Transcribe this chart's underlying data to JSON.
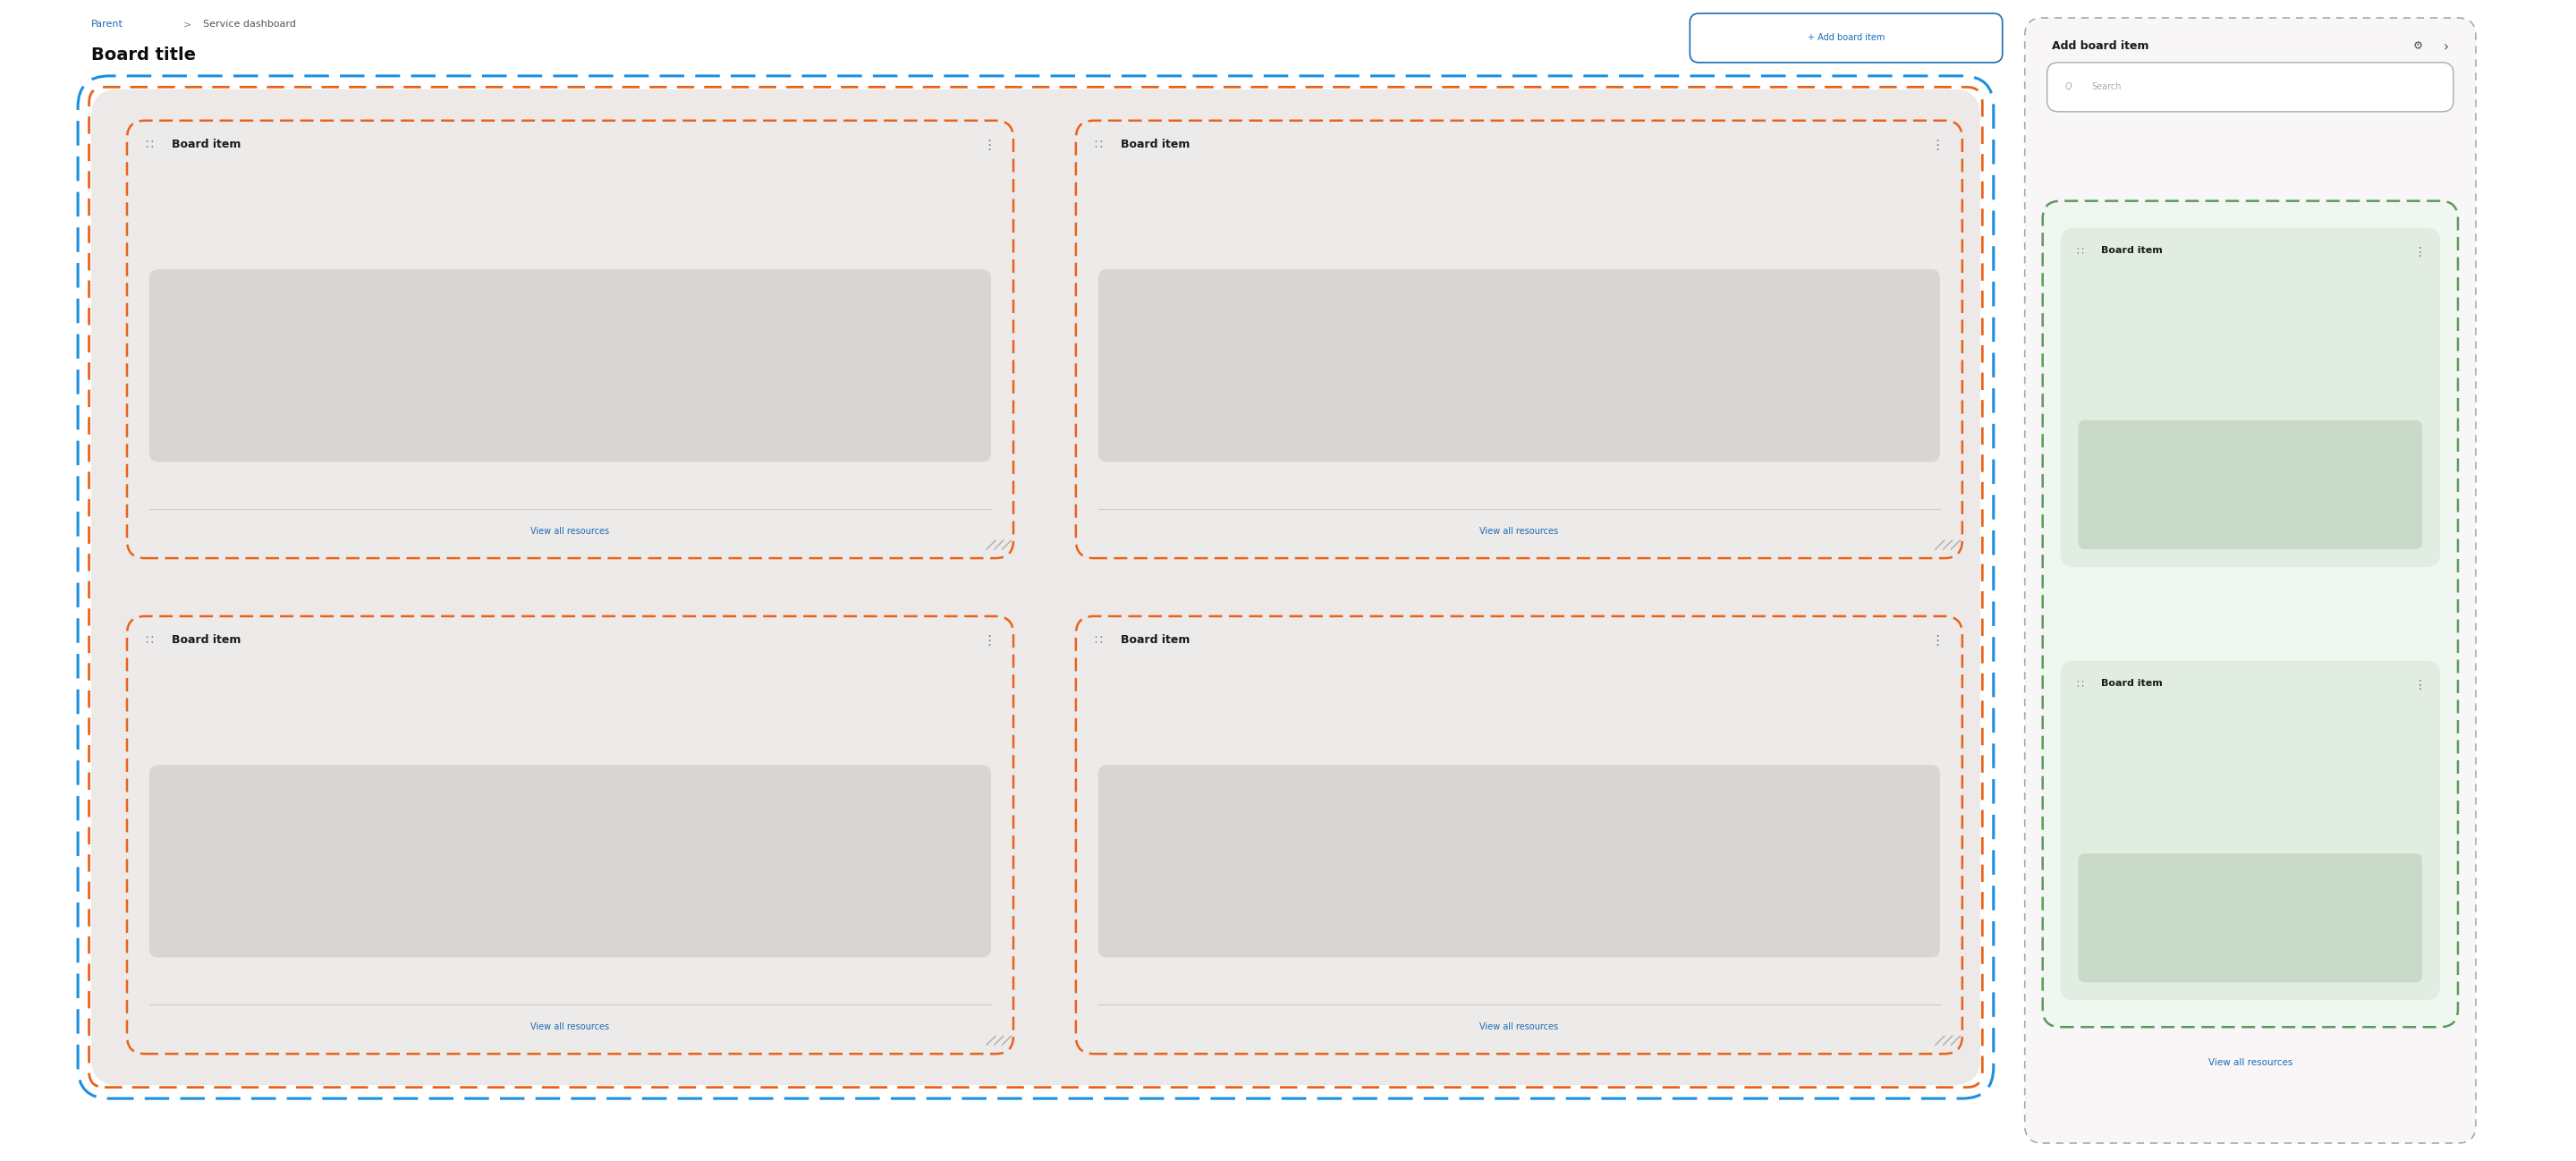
{
  "bg_color": "#ffffff",
  "breadcrumb_parent": "Parent",
  "breadcrumb_sep": ">",
  "breadcrumb_rest": "Service dashboard",
  "board_title": "Board title",
  "add_board_btn": "+ Add board item",
  "board_border_blue": "#1a8fe3",
  "board_border_orange": "#e8631a",
  "card_bg": "#edeaea",
  "card_inner_bg": "#d8d5d5",
  "card_link_color": "#1a6bb5",
  "card_link_text": "View all resources",
  "board_item_text": "Board item",
  "panel_header": "Add board item",
  "search_placeholder": "Search",
  "search_bg": "#ffffff",
  "search_border": "#aaaaaa",
  "panel_card_bg": "#e2ede2",
  "panel_card_inner": "#c8d9c8",
  "panel_card_border": "#5a9a5a",
  "panel_link_color": "#1a6bb5",
  "panel_outer_border": "#aaaaaa",
  "dots_color": "#555555",
  "gear_color": "#555555",
  "arrow_color": "#555555"
}
